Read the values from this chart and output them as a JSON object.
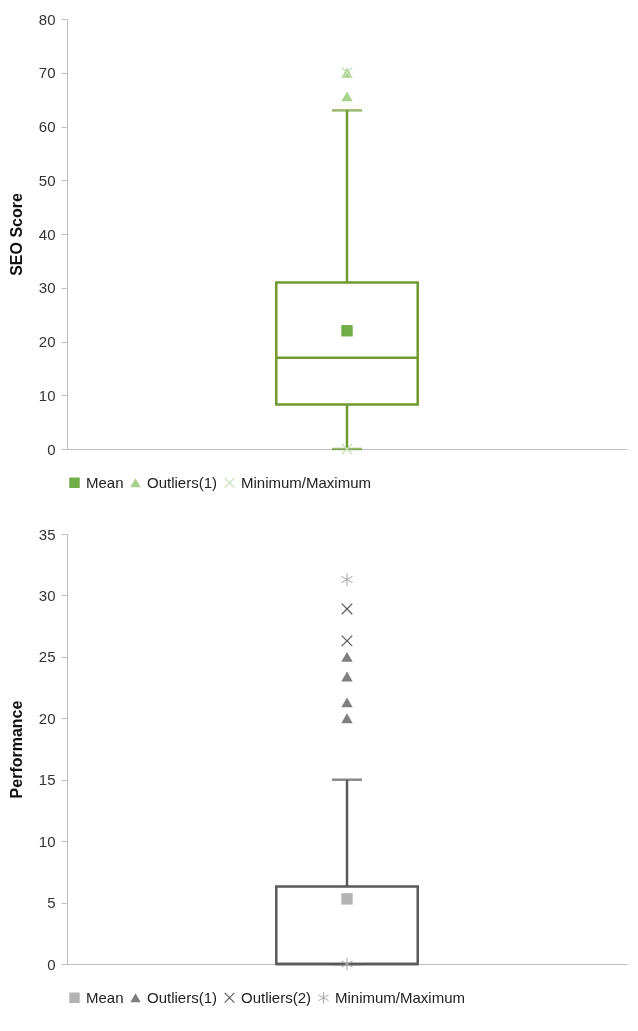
{
  "chart_data": [
    {
      "type": "box",
      "ylabel": "SEO Score",
      "categories": [
        null
      ],
      "ylim": [
        0,
        80
      ],
      "yticks": [
        0,
        10,
        20,
        30,
        40,
        50,
        60,
        70,
        80
      ],
      "grid": false,
      "legend": "bottom",
      "tick_labels": "y",
      "series": [
        {
          "type": "box",
          "color": "#6f9a2f",
          "boxes": [
            {
              "low": 0,
              "q1": 8.3,
              "median": 17,
              "q3": 31,
              "high": 63
            }
          ]
        },
        {
          "type": "scatter",
          "name": "Mean",
          "color": "#70ad47",
          "marker": "square",
          "x": [
            null
          ],
          "values": [
            22
          ]
        },
        {
          "type": "scatter",
          "name": "Outliers(1)",
          "color": "#a9d18e",
          "marker": "triangle",
          "x": [
            null,
            null
          ],
          "values": [
            65.6,
            70
          ]
        },
        {
          "type": "scatter",
          "name": "Minimum/Maximum",
          "color": "#c5e0b4",
          "marker": "cross",
          "x": [
            null,
            null
          ],
          "values": [
            0,
            70
          ]
        }
      ]
    },
    {
      "type": "box",
      "ylabel": "Performance",
      "categories": [
        null
      ],
      "ylim": [
        0,
        35
      ],
      "yticks": [
        0,
        5,
        10,
        15,
        20,
        25,
        30,
        35
      ],
      "grid": false,
      "legend": "bottom",
      "tick_labels": "y",
      "series": [
        {
          "type": "box",
          "color": "#595959",
          "boxes": [
            {
              "low": 0,
              "q1": 0,
              "median": 0,
              "q3": 6.3,
              "high": 15
            }
          ]
        },
        {
          "type": "scatter",
          "name": "Mean",
          "color": "#b3b3b3",
          "marker": "square",
          "x": [
            null
          ],
          "values": [
            5.3
          ]
        },
        {
          "type": "scatter",
          "name": "Outliers(1)",
          "color": "#7f7f7f",
          "marker": "triangle",
          "x": [
            null,
            null,
            null,
            null
          ],
          "values": [
            20,
            21.3,
            23.4,
            25
          ]
        },
        {
          "type": "scatter",
          "name": "Outliers(2)",
          "color": "#595959",
          "marker": "cross",
          "x": [
            null,
            null
          ],
          "values": [
            26.3,
            28.9
          ]
        },
        {
          "type": "scatter",
          "name": "Minimum/Maximum",
          "color": "#a6a6a6",
          "x": [
            null,
            null
          ],
          "values": [
            0,
            31.3
          ]
        }
      ]
    }
  ]
}
